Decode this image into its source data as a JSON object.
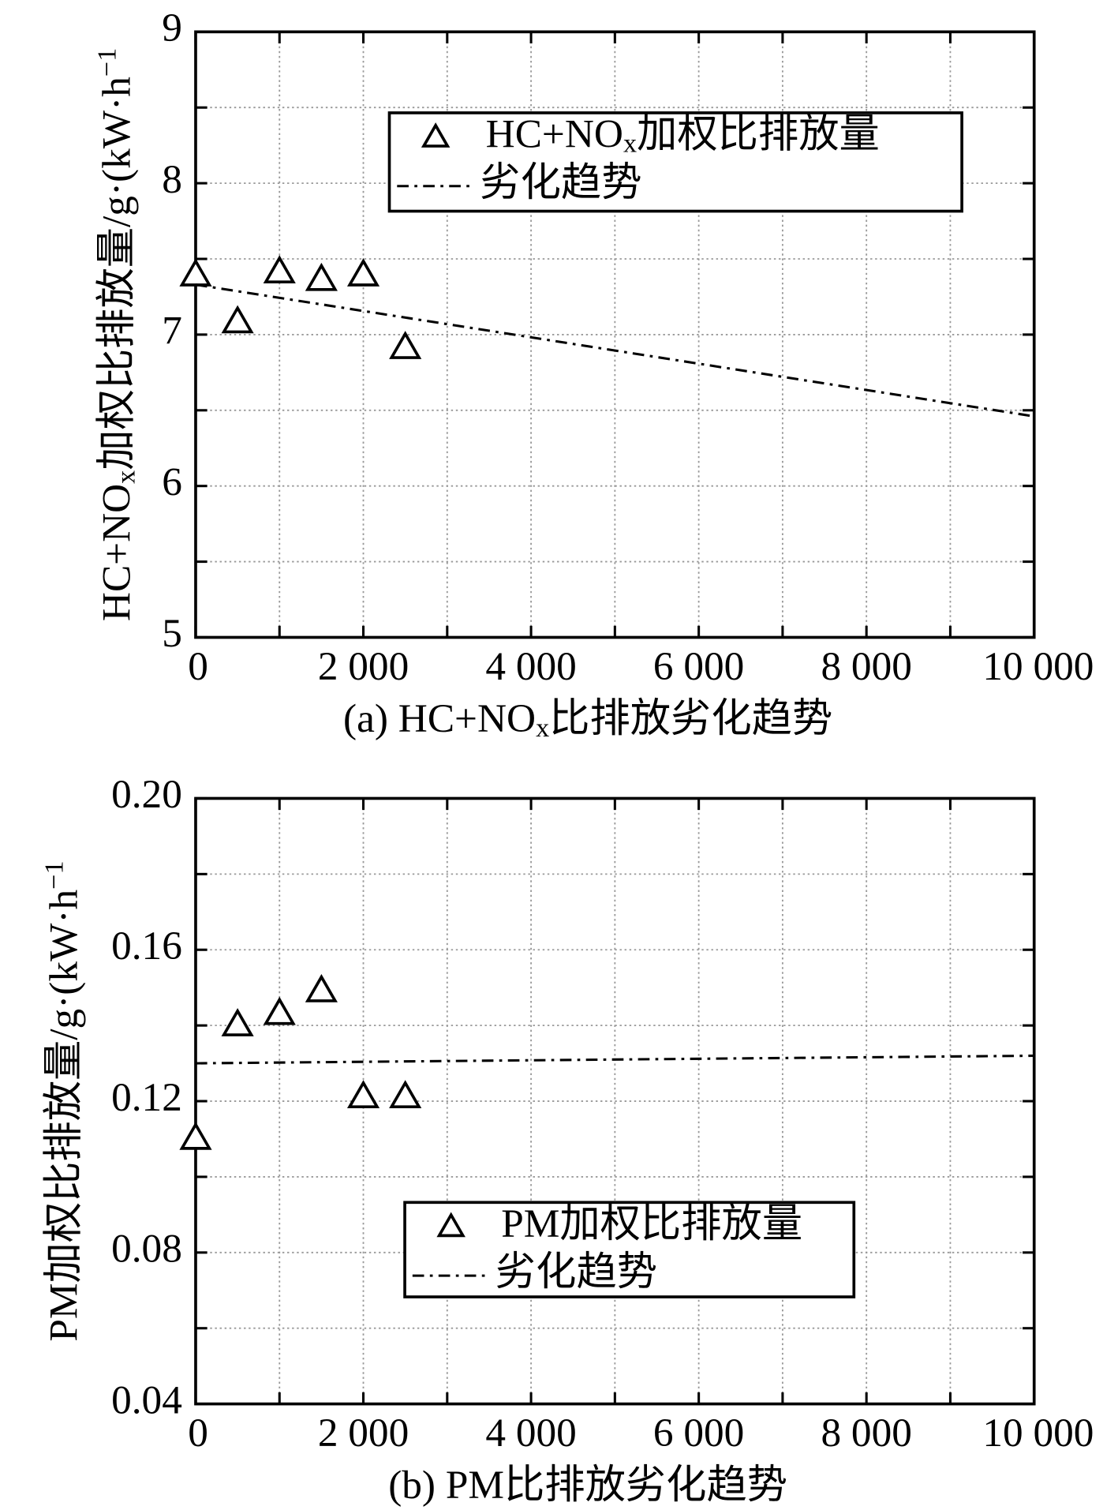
{
  "chart_data": [
    {
      "type": "scatter",
      "ylabel": [
        {
          "text": "HC+NO"
        },
        {
          "text": "x",
          "script": "sub"
        },
        {
          "text": "加权比排放量/g·(kW·h"
        },
        {
          "text": "−1",
          "script": "sup"
        }
      ],
      "caption": [
        {
          "text": "(a) HC+NO"
        },
        {
          "text": "x",
          "script": "sub"
        },
        {
          "text": "比排放劣化趋势"
        }
      ],
      "xlim": [
        0,
        10000
      ],
      "ylim": [
        5,
        9
      ],
      "xticks": [
        0,
        {
          "value": 2000,
          "label": "2 000"
        },
        {
          "value": 4000,
          "label": "4 000"
        },
        {
          "value": 6000,
          "label": "6 000"
        },
        {
          "value": 8000,
          "label": "8 000"
        },
        {
          "value": 10000,
          "label": "10 000"
        }
      ],
      "yticks": [
        5,
        6,
        7,
        8,
        9
      ],
      "xminor": [
        1000,
        3000,
        5000,
        7000,
        9000
      ],
      "yminor": [
        5.5,
        6.5,
        7.5,
        8.5
      ],
      "grid": true,
      "legend": "upper center",
      "color": "#000000",
      "series": [
        {
          "name": [
            {
              "text": "HC+NO"
            },
            {
              "text": "x",
              "script": "sub"
            },
            {
              "text": "加权比排放量"
            }
          ],
          "marker": "triangle",
          "x": [
            0,
            500,
            1000,
            1500,
            2000,
            2500
          ],
          "values": [
            7.39,
            7.08,
            7.41,
            7.36,
            7.39,
            6.91
          ]
        },
        {
          "name": [
            {
              "text": "劣化趋势"
            }
          ],
          "line": "dashdot",
          "x": [
            0,
            10000
          ],
          "values": [
            7.33,
            6.46
          ]
        }
      ]
    },
    {
      "type": "scatter",
      "ylabel": [
        {
          "text": "PM加权比排放量/g·(kW·h"
        },
        {
          "text": "−1",
          "script": "sup"
        }
      ],
      "caption": [
        {
          "text": "(b) PM比排放劣化趋势"
        }
      ],
      "xlim": [
        0,
        10000
      ],
      "ylim": [
        0.04,
        0.2
      ],
      "xticks": [
        0,
        {
          "value": 2000,
          "label": "2 000"
        },
        {
          "value": 4000,
          "label": "4 000"
        },
        {
          "value": 6000,
          "label": "6 000"
        },
        {
          "value": 8000,
          "label": "8 000"
        },
        {
          "value": 10000,
          "label": "10 000"
        }
      ],
      "yticks": [
        0.04,
        0.08,
        0.12,
        0.16,
        {
          "value": 0.2,
          "label": "0.20"
        }
      ],
      "xminor": [
        1000,
        3000,
        5000,
        7000,
        9000
      ],
      "yminor": [
        0.06,
        0.1,
        0.14,
        0.18
      ],
      "grid": true,
      "legend": "lower center",
      "color": "#000000",
      "series": [
        {
          "name": [
            {
              "text": "PM加权比排放量"
            }
          ],
          "marker": "triangle",
          "x": [
            0,
            500,
            1000,
            1500,
            2000,
            2500
          ],
          "values": [
            0.11,
            0.14,
            0.143,
            0.149,
            0.121,
            0.121
          ]
        },
        {
          "name": [
            {
              "text": "劣化趋势"
            }
          ],
          "line": "dashdot",
          "x": [
            0,
            10000
          ],
          "values": [
            0.13,
            0.132
          ]
        }
      ]
    }
  ]
}
